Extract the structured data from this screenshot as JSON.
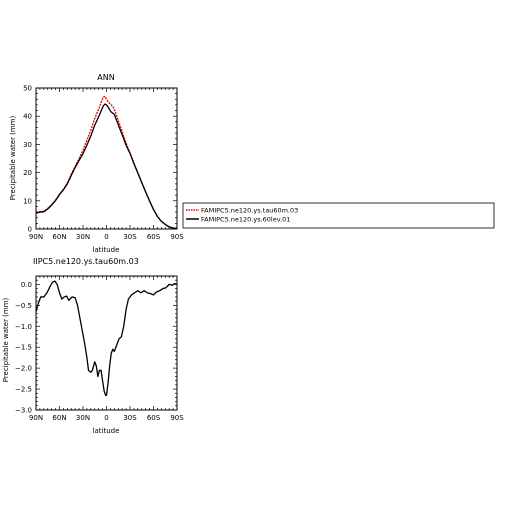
{
  "chart_data": [
    {
      "type": "line",
      "title": "ANN",
      "xlabel": "latitude",
      "ylabel": "Precipitable water (mm)",
      "x_ticks": [
        -90,
        -60,
        -30,
        0,
        30,
        60,
        90
      ],
      "x_tick_labels": [
        "90N",
        "60N",
        "30N",
        "0",
        "30S",
        "60S",
        "90S"
      ],
      "xlim": [
        -90,
        90
      ],
      "y_ticks": [
        0,
        10,
        20,
        30,
        40,
        50
      ],
      "y_tick_labels": [
        "0",
        "10",
        "20",
        "30",
        "40",
        "50"
      ],
      "ylim": [
        0,
        50
      ],
      "grid": false,
      "legend_position": "right",
      "series": [
        {
          "name": "FAMIPC5.ne120.ys.tau60m.03",
          "color": "#e00000",
          "dash": true,
          "x": [
            -90,
            -85,
            -80,
            -75,
            -70,
            -65,
            -60,
            -55,
            -50,
            -45,
            -40,
            -35,
            -30,
            -25,
            -20,
            -15,
            -12,
            -10,
            -8,
            -6,
            -4,
            -2,
            0,
            2,
            4,
            6,
            8,
            10,
            15,
            20,
            25,
            30,
            35,
            40,
            45,
            50,
            55,
            60,
            65,
            70,
            75,
            80,
            85,
            90
          ],
          "values": [
            5.9,
            6.2,
            6.3,
            7.3,
            8.7,
            10.3,
            12.4,
            14.1,
            16.3,
            19.4,
            22.3,
            25.0,
            28.0,
            31.5,
            35.0,
            39.2,
            41.2,
            42.5,
            44.0,
            45.5,
            46.8,
            47.0,
            46.0,
            45.2,
            44.5,
            44.0,
            43.5,
            42.5,
            38.5,
            34.5,
            30.5,
            27.0,
            23.4,
            20.0,
            16.6,
            13.2,
            10.0,
            7.0,
            4.5,
            2.8,
            1.7,
            0.8,
            0.4,
            0.3
          ]
        },
        {
          "name": "FAMIPC5.ne120.ys.60lev.01",
          "color": "#000000",
          "dash": false,
          "x": [
            -90,
            -85,
            -80,
            -75,
            -70,
            -65,
            -60,
            -55,
            -50,
            -45,
            -40,
            -35,
            -30,
            -25,
            -20,
            -15,
            -12,
            -10,
            -8,
            -6,
            -4,
            -2,
            0,
            2,
            4,
            6,
            8,
            10,
            15,
            20,
            25,
            30,
            35,
            40,
            45,
            50,
            55,
            60,
            65,
            70,
            75,
            80,
            85,
            90
          ],
          "values": [
            5.6,
            6.0,
            6.1,
            7.1,
            8.5,
            10.1,
            12.2,
            13.9,
            16.0,
            19.0,
            21.8,
            24.3,
            26.7,
            29.8,
            33.0,
            36.8,
            38.6,
            39.8,
            41.1,
            42.4,
            43.7,
            44.3,
            44.0,
            43.3,
            42.3,
            41.5,
            41.1,
            40.6,
            37.0,
            33.4,
            29.7,
            26.8,
            23.2,
            19.8,
            16.4,
            13.1,
            9.9,
            6.9,
            4.4,
            2.7,
            1.6,
            0.7,
            0.3,
            0.2
          ]
        }
      ]
    },
    {
      "type": "line",
      "title": "IIPC5.ne120.ys.tau60m.03",
      "xlabel": "latitude",
      "ylabel": "Precipitable water (mm)",
      "x_ticks": [
        -90,
        -60,
        -30,
        0,
        30,
        60,
        90
      ],
      "x_tick_labels": [
        "90N",
        "60N",
        "30N",
        "0",
        "30S",
        "60S",
        "90S"
      ],
      "xlim": [
        -90,
        90
      ],
      "y_ticks": [
        -3.0,
        -2.5,
        -2.0,
        -1.5,
        -1.0,
        -0.5,
        0.0
      ],
      "y_tick_labels": [
        "−3.0",
        "−2.5",
        "−2.0",
        "−1.5",
        "−1.0",
        "−0.5",
        "0.0"
      ],
      "ylim": [
        -3.0,
        0.2
      ],
      "grid": false,
      "series": [
        {
          "color": "#000000",
          "x": [
            -90,
            -87,
            -84,
            -80,
            -76,
            -72,
            -69,
            -66,
            -63,
            -60,
            -57,
            -54,
            -51,
            -48,
            -44,
            -40,
            -37,
            -34,
            -31,
            -28,
            -25,
            -23,
            -20,
            -18,
            -15,
            -13,
            -11,
            -9,
            -7,
            -5,
            -3,
            -1,
            0,
            2,
            4,
            6,
            8,
            10,
            13,
            16,
            19,
            22,
            25,
            28,
            32,
            36,
            40,
            44,
            48,
            52,
            56,
            60,
            64,
            68,
            72,
            76,
            80,
            84,
            87,
            90
          ],
          "values": [
            -0.65,
            -0.45,
            -0.3,
            -0.3,
            -0.2,
            -0.05,
            0.05,
            0.08,
            0.0,
            -0.2,
            -0.35,
            -0.3,
            -0.28,
            -0.38,
            -0.3,
            -0.32,
            -0.5,
            -0.8,
            -1.1,
            -1.4,
            -1.75,
            -2.05,
            -2.1,
            -2.05,
            -1.85,
            -1.95,
            -2.2,
            -2.05,
            -2.05,
            -2.3,
            -2.55,
            -2.65,
            -2.65,
            -2.35,
            -1.95,
            -1.65,
            -1.55,
            -1.6,
            -1.45,
            -1.3,
            -1.25,
            -1.0,
            -0.6,
            -0.35,
            -0.25,
            -0.2,
            -0.15,
            -0.2,
            -0.15,
            -0.2,
            -0.22,
            -0.25,
            -0.18,
            -0.15,
            -0.1,
            -0.08,
            0.0,
            -0.02,
            0.02,
            0.0
          ]
        }
      ]
    }
  ]
}
